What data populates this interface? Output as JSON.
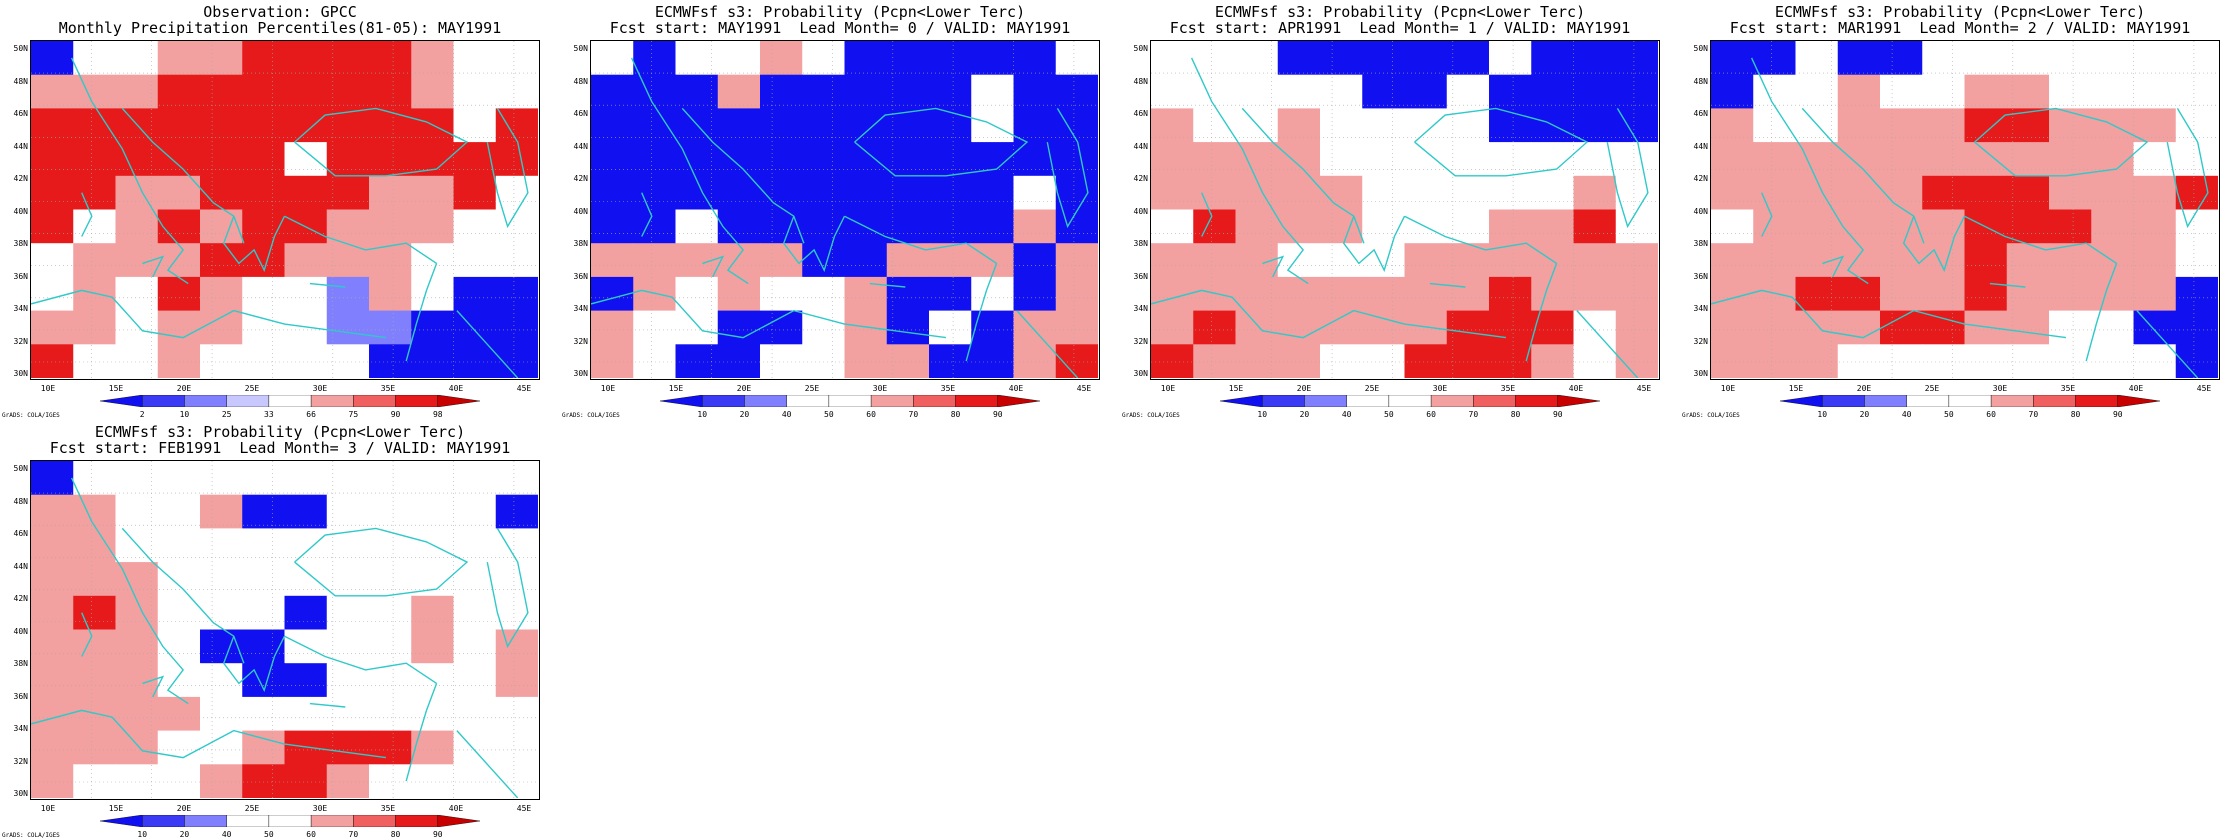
{
  "colors": {
    "blue": "#1010f0",
    "lightblue": "#8080ff",
    "palered": "#f2a0a0",
    "midred": "#f06060",
    "red": "#e61a1a",
    "deepred": "#c80000",
    "coast": "#2fc9c9",
    "white": "#ffffff"
  },
  "lat_labels": [
    "50N",
    "48N",
    "46N",
    "44N",
    "42N",
    "40N",
    "38N",
    "36N",
    "34N",
    "32N",
    "30N"
  ],
  "lon_labels": [
    "10E",
    "15E",
    "20E",
    "25E",
    "30E",
    "35E",
    "40E",
    "45E"
  ],
  "footer": "GrADS: COLA/IGES",
  "panels": [
    {
      "title1": "Observation: GPCC",
      "title2": "Monthly Precipitation Percentiles(81-05): MAY1991",
      "colorbar": {
        "colors": [
          "blue",
          "#3b3bf5",
          "lightblue",
          "#c8c8ff",
          "white",
          "palered",
          "midred",
          "red",
          "deepred"
        ],
        "labels": [
          "2",
          "10",
          "25",
          "33",
          "66",
          "75",
          "90",
          "98"
        ]
      },
      "grid": [
        "bWWrrRRRRrWW",
        "rrrRRRRRRrWW",
        "RRRRRRRRRRWR",
        "RRRRRRWRRRRR",
        "RRrrRRRRrrRW",
        "RWrRrRRrrrWW",
        "WrrrRRrrrWWW",
        "WrWRrWWlrWbb",
        "rrWrrWWllbbb",
        "RWWrWWWWbbbb"
      ]
    },
    {
      "title1": "ECMWFsf s3: Probability (Pcpn<Lower Terc)",
      "title2": "Fcst start: MAY1991  Lead Month= 0 / VALID: MAY1991",
      "colorbar": {
        "colors": [
          "blue",
          "#3b3bf5",
          "lightblue",
          "white",
          "white",
          "palered",
          "midred",
          "red",
          "deepred"
        ],
        "labels": [
          "10",
          "20",
          "40",
          "50",
          "60",
          "70",
          "80",
          "90"
        ]
      },
      "grid": [
        "WbWWrWbbbbbW",
        "bbbrbbbbbWbb",
        "bbbbbbbbbWbb",
        "bbbbbbbbbbbb",
        "bbbbbbbbbbWb",
        "bbWbbbbbbbrb",
        "rrrrrbbrrrbr",
        "brWrWWrbbWbr",
        "rWWbbWrbWbrr",
        "rWbbWWrrbbrR"
      ]
    },
    {
      "title1": "ECMWFsf s3: Probability (Pcpn<Lower Terc)",
      "title2": "Fcst start: APR1991  Lead Month= 1 / VALID: MAY1991",
      "colorbar": {
        "colors": [
          "blue",
          "#3b3bf5",
          "lightblue",
          "white",
          "white",
          "palered",
          "midred",
          "red",
          "deepred"
        ],
        "labels": [
          "10",
          "20",
          "40",
          "50",
          "60",
          "70",
          "80",
          "90"
        ]
      },
      "grid": [
        "WWWbbbbbWbbb",
        "WWWWWbbWbbbb",
        "rWWrWWWWbbbb",
        "rrrrWWWWWWWW",
        "rrrrrWWWWWrW",
        "WRrrrWWWrrRW",
        "rrrWWWrrrrrr",
        "rrrrrrrrRrrr",
        "rRrrrrrRRRWr",
        "RrrrWWRRRrWr"
      ]
    },
    {
      "title1": "ECMWFsf s3: Probability (Pcpn<Lower Terc)",
      "title2": "Fcst start: MAR1991  Lead Month= 2 / VALID: MAY1991",
      "colorbar": {
        "colors": [
          "blue",
          "#3b3bf5",
          "lightblue",
          "white",
          "white",
          "palered",
          "midred",
          "red",
          "deepred"
        ],
        "labels": [
          "10",
          "20",
          "40",
          "50",
          "60",
          "70",
          "80",
          "90"
        ]
      },
      "grid": [
        "bbWbbWWWWWWW",
        "bWWrWWrrWWWW",
        "rWWrrrRRrrrW",
        "rrrrrrrrrrWW",
        "rrrrrRRRrrrR",
        "WrrrrrRRRrrW",
        "rrrrrrRrrrrW",
        "rrRRrrRrrrrb",
        "rrrrRRrrWWbb",
        "rrrWWWWWWWWb"
      ]
    },
    {
      "title1": "ECMWFsf s3: Probability (Pcpn<Lower Terc)",
      "title2": "Fcst start: FEB1991  Lead Month= 3 / VALID: MAY1991",
      "colorbar": {
        "colors": [
          "blue",
          "#3b3bf5",
          "lightblue",
          "white",
          "white",
          "palered",
          "midred",
          "red",
          "deepred"
        ],
        "labels": [
          "10",
          "20",
          "40",
          "50",
          "60",
          "70",
          "80",
          "90"
        ]
      },
      "grid": [
        "bWWWWWWWWWWW",
        "rrWWrbbWWWWb",
        "rrWWWWWWWWWW",
        "rrrWWWWWWWWW",
        "rRrWWWbWWrWW",
        "rrrWbbWWWrWr",
        "rrrWWbbWWWWr",
        "rrrrWWWWWWWW",
        "rrrWWrRRRrWW",
        "rWWWrRRrWWWW"
      ]
    }
  ]
}
